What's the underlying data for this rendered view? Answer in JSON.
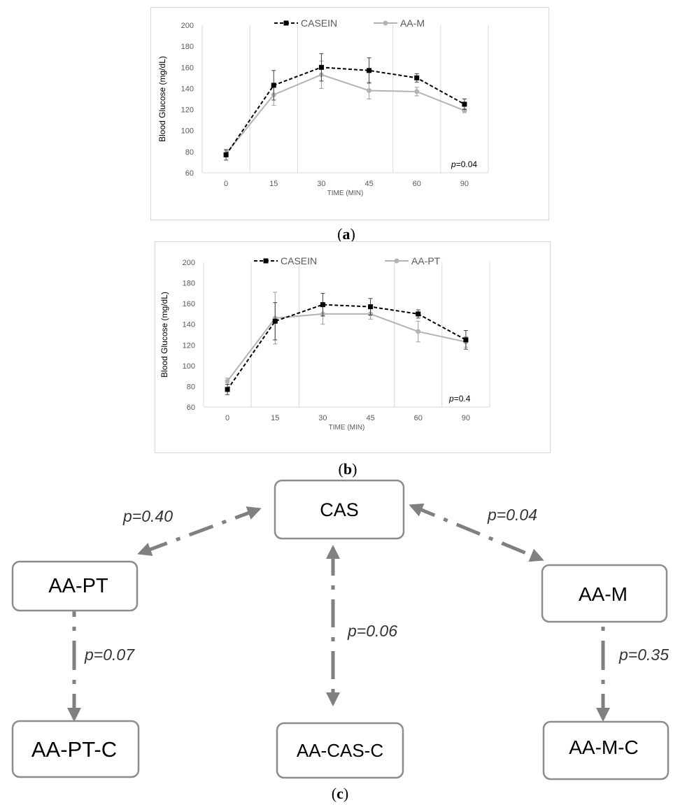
{
  "chart_data": [
    {
      "type": "line",
      "panel": "a",
      "x_categories": [
        "0",
        "15",
        "30",
        "45",
        "60",
        "90"
      ],
      "xlabel": "TIME (MIN)",
      "ylabel": "Blood Glucose (mg/dL)",
      "ylim": [
        60,
        200
      ],
      "y_ticks": [
        60,
        80,
        100,
        120,
        140,
        160,
        180,
        200
      ],
      "grid": "vertical",
      "legend": "top",
      "annotation": {
        "italic": "p",
        "text": "=0.04"
      },
      "series": [
        {
          "name": "CASEIN",
          "color": "#000000",
          "dashed": true,
          "marker": "square",
          "values": [
            77,
            143,
            160,
            157,
            150,
            125
          ],
          "errors": [
            5,
            14,
            13,
            12,
            4,
            5
          ]
        },
        {
          "name": "AA-M",
          "color": "#b3b3b3",
          "dashed": false,
          "marker": "circle",
          "values": [
            78,
            134,
            153,
            138,
            137,
            119
          ],
          "errors": [
            3,
            10,
            13,
            8,
            4,
            2
          ]
        }
      ]
    },
    {
      "type": "line",
      "panel": "b",
      "x_categories": [
        "0",
        "15",
        "30",
        "45",
        "60",
        "90"
      ],
      "xlabel": "TIME (MIN)",
      "ylabel": "Blood Glucose (mg/dL)",
      "ylim": [
        60,
        200
      ],
      "y_ticks": [
        60,
        80,
        100,
        120,
        140,
        160,
        180,
        200
      ],
      "grid": "vertical",
      "legend": "top",
      "annotation": {
        "italic": "p",
        "text": "=0.4"
      },
      "series": [
        {
          "name": "CASEIN",
          "color": "#000000",
          "dashed": true,
          "marker": "square",
          "values": [
            77,
            143,
            159,
            157,
            150,
            125
          ],
          "errors": [
            5,
            18,
            11,
            8,
            4,
            9
          ]
        },
        {
          "name": "AA-PT",
          "color": "#b3b3b3",
          "dashed": false,
          "marker": "circle",
          "values": [
            85,
            146,
            150,
            150,
            133,
            123
          ],
          "errors": [
            3,
            25,
            10,
            5,
            10,
            5
          ]
        }
      ]
    }
  ],
  "captions": {
    "a": "a",
    "b": "b",
    "c": "c"
  },
  "diagram": {
    "nodes": {
      "cas": "CAS",
      "aa_pt": "AA-PT",
      "aa_m": "AA-M",
      "aa_pt_c": "AA-PT-C",
      "aa_cas_c": "AA-CAS-C",
      "aa_m_c": "AA-M-C"
    },
    "edge_labels": {
      "cas_aa_pt": "p=0.40",
      "cas_aa_m": "p=0.04",
      "cas_aa_cas_c": "p=0.06",
      "aa_pt_aa_pt_c": "p=0.07",
      "aa_m_aa_m_c": "p=0.35"
    },
    "arrow_color": "#808080",
    "box_border_color": "#8c8c8c"
  }
}
